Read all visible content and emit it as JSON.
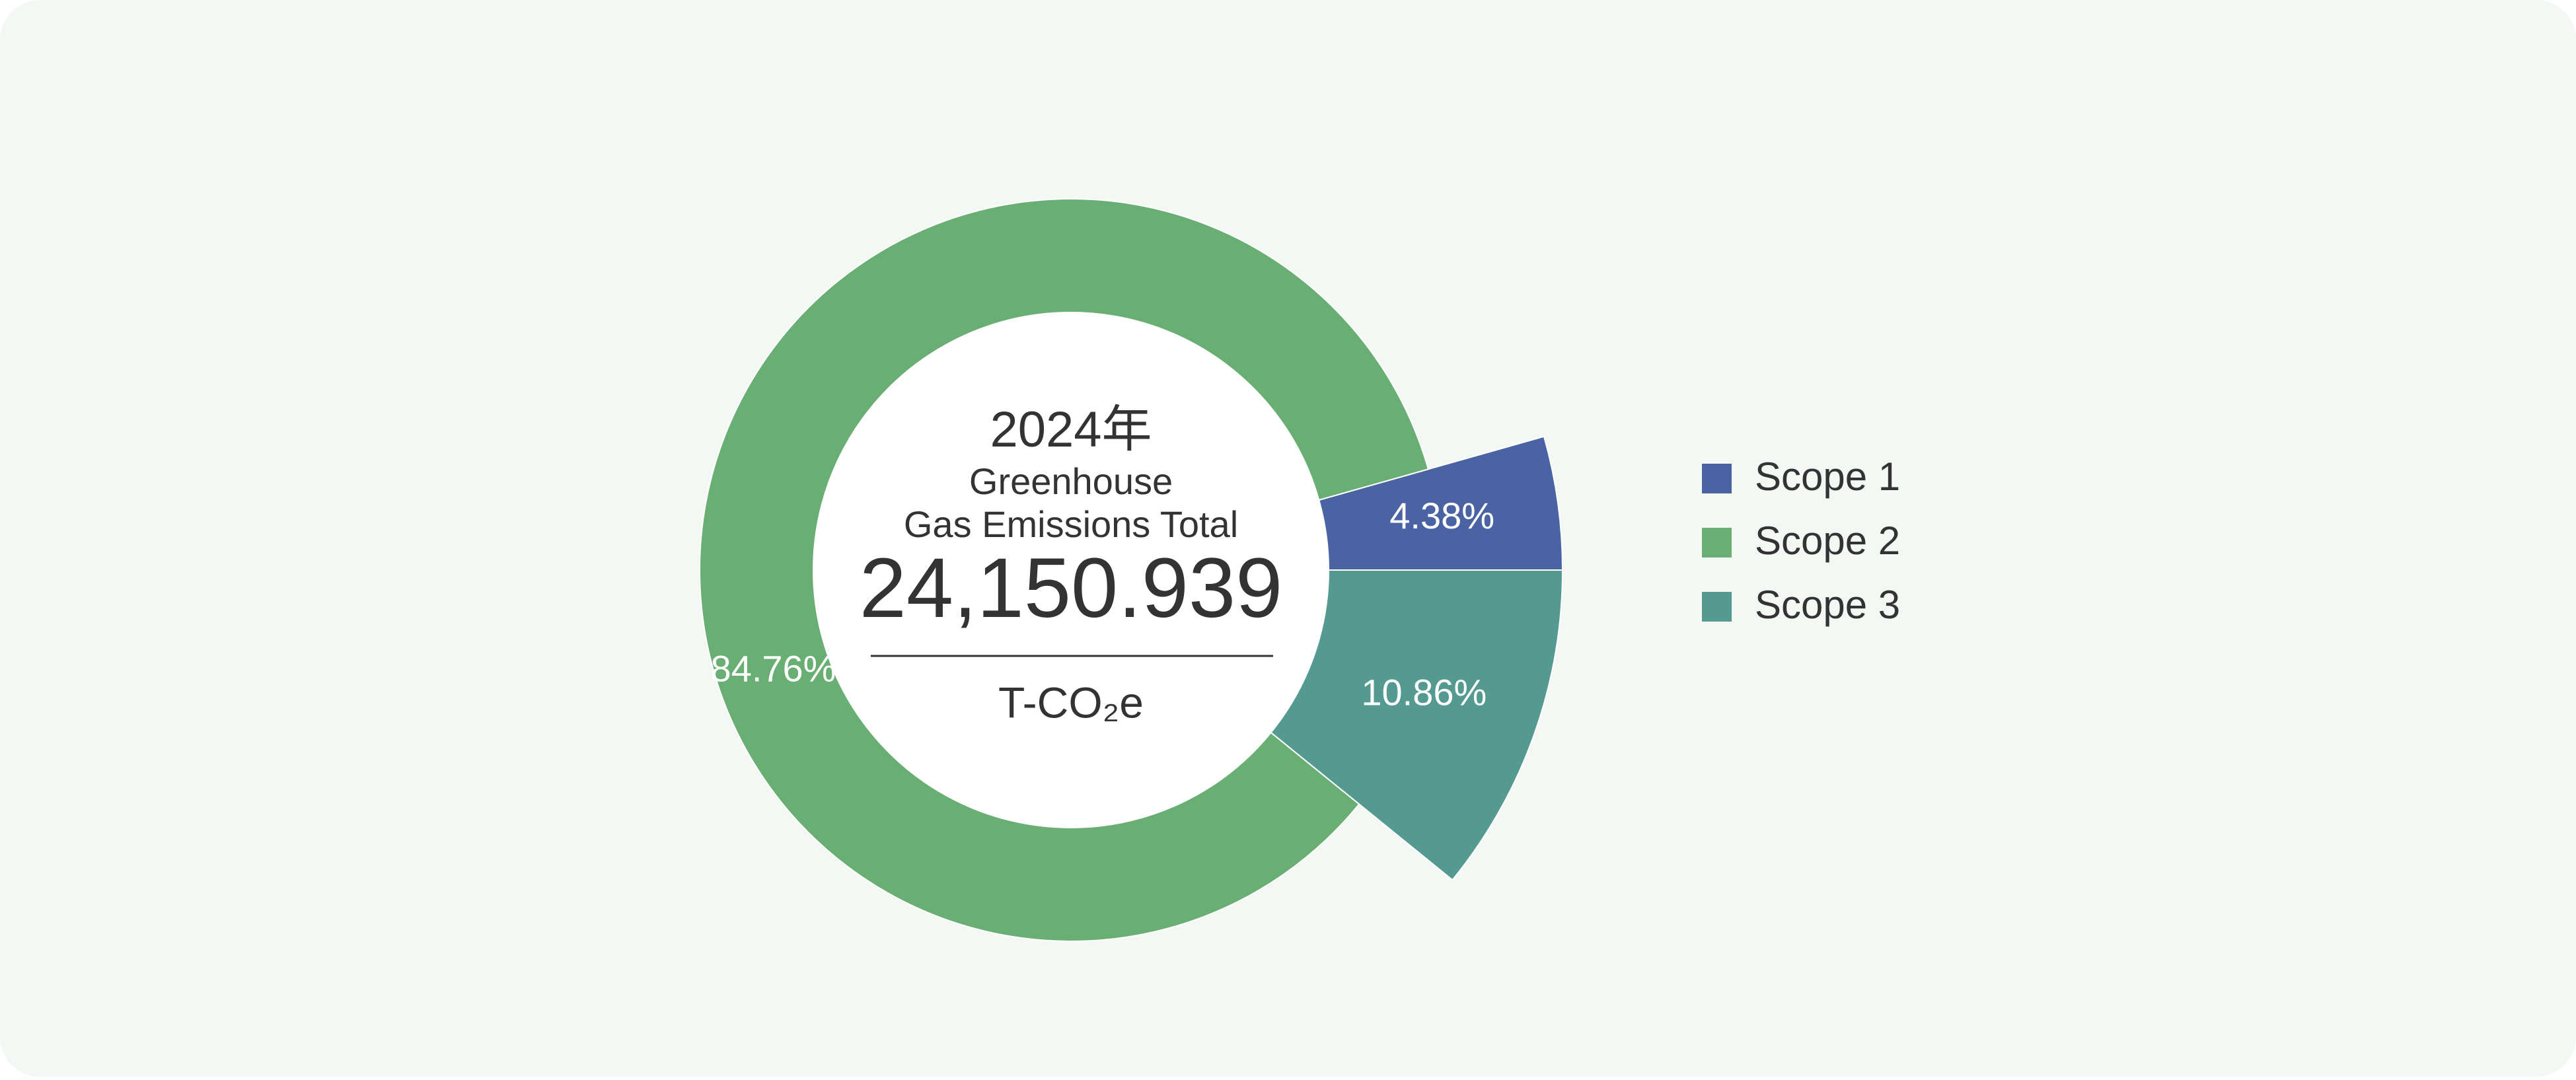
{
  "chart_data": {
    "type": "pie",
    "year_label": "2024年",
    "title_lines": [
      "Greenhouse",
      "Gas Emissions Total"
    ],
    "total": {
      "value": 24150.939,
      "label": "24,150.939"
    },
    "unit": "T-CO₂e",
    "categories": [
      "Scope 1",
      "Scope 2",
      "Scope 3"
    ],
    "values": [
      4.38,
      84.76,
      10.86
    ],
    "value_labels": [
      "4.38%",
      "84.76%",
      "10.86%"
    ],
    "colors": [
      "#4a63a2",
      "#69ae72",
      "#559a91"
    ],
    "legend": "right"
  }
}
